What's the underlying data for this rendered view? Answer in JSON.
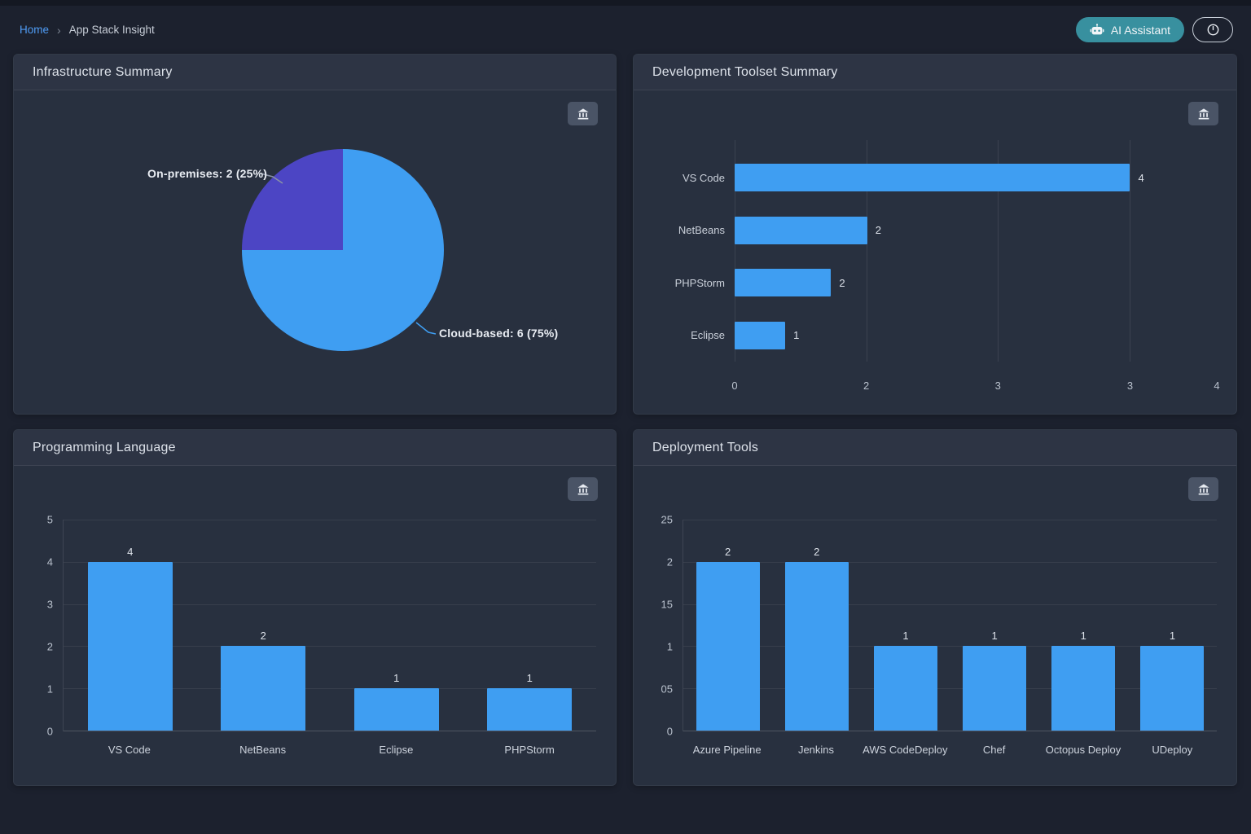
{
  "colors": {
    "bar_blue": "#3f9ef2",
    "pie_purple": "#4c45c4",
    "teal_button": "#38909f",
    "link_blue": "#4f9cf5",
    "panel_bg": "#28303f",
    "page_bg": "#1c212e"
  },
  "breadcrumb": {
    "home": "Home",
    "separator": "›",
    "current": "App Stack Insight"
  },
  "topbar": {
    "ai_assistant": "AI Assistant"
  },
  "chart_data": [
    {
      "id": "infrastructure_summary",
      "type": "pie",
      "title": "Infrastructure Summary",
      "slices": [
        {
          "label": "On-premises",
          "value": 2,
          "pct": 25,
          "display": "On-premises: 2 (25%)",
          "color": "#4c45c4"
        },
        {
          "label": "Cloud-based",
          "value": 6,
          "pct": 75,
          "display": "Cloud-based: 6 (75%)",
          "color": "#3f9ef2"
        }
      ],
      "legend_position": "callout-labels"
    },
    {
      "id": "development_toolset_summary",
      "type": "bar",
      "orientation": "horizontal",
      "title": "Development Toolset Summary",
      "categories": [
        "VS Code",
        "NetBeans",
        "PHPStorm",
        "Eclipse"
      ],
      "values": [
        4,
        2,
        2,
        1
      ],
      "x_tick_labels": [
        "0",
        "2",
        "3",
        "3",
        "4"
      ],
      "x_tick_pcts": [
        0,
        27.3,
        54.6,
        82,
        100
      ],
      "gridline_pcts": [
        0,
        27.3,
        54.6,
        82
      ],
      "bar_length_pct": [
        82,
        27.5,
        20,
        10.5
      ],
      "bar_color": "#3f9ef2",
      "grid": true
    },
    {
      "id": "programming_language",
      "type": "bar",
      "orientation": "vertical",
      "title": "Programming Language",
      "categories": [
        "VS Code",
        "NetBeans",
        "Eclipse",
        "PHPStorm"
      ],
      "values": [
        4,
        2,
        1,
        1
      ],
      "y_tick_labels": [
        "5",
        "4",
        "3",
        "2",
        "1",
        "0"
      ],
      "ylim": [
        0,
        5
      ],
      "bar_color": "#3f9ef2",
      "grid": true
    },
    {
      "id": "deployment_tools",
      "type": "bar",
      "orientation": "vertical",
      "title": "Deployment Tools",
      "categories": [
        "Azure Pipeline",
        "Jenkins",
        "AWS CodeDeploy",
        "Chef",
        "Octopus Deploy",
        "UDeploy"
      ],
      "values": [
        2,
        2,
        1,
        1,
        1,
        1
      ],
      "y_tick_labels": [
        "25",
        "2",
        "15",
        "1",
        "05",
        "0"
      ],
      "ylim": [
        0,
        2.5
      ],
      "bar_color": "#3f9ef2",
      "grid": true
    }
  ]
}
